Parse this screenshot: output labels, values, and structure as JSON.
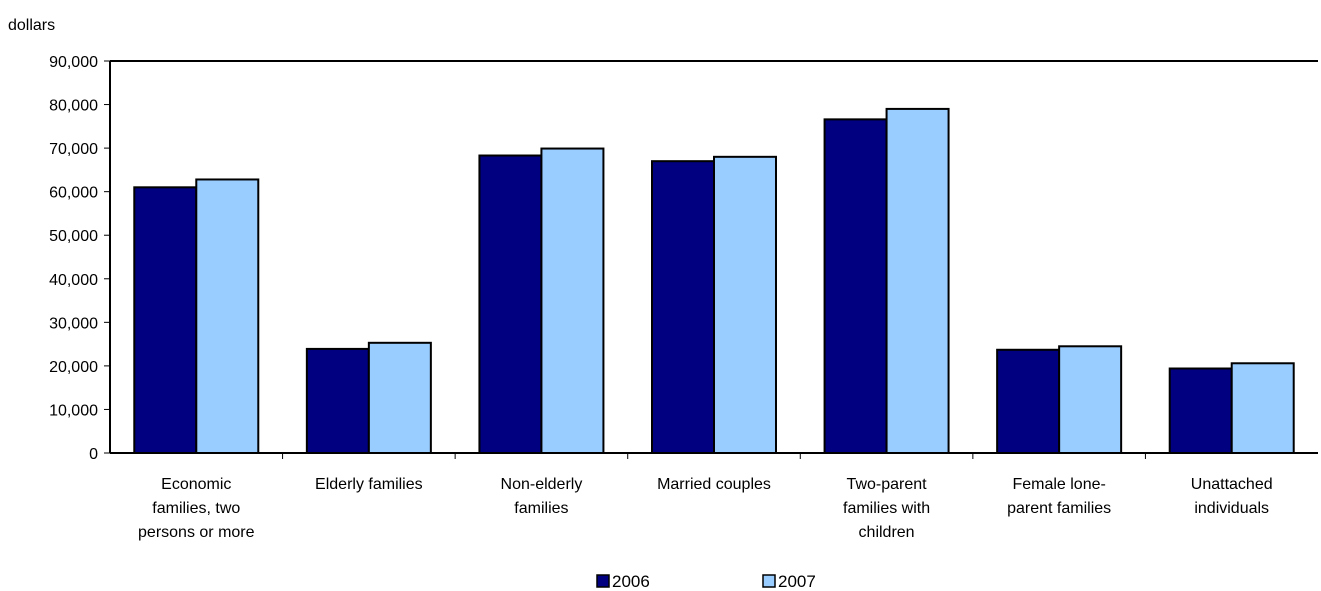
{
  "chart_data": {
    "type": "bar",
    "ylabel": "dollars",
    "ylim": [
      0,
      90000
    ],
    "yticks": [
      0,
      10000,
      20000,
      30000,
      40000,
      50000,
      60000,
      70000,
      80000,
      90000
    ],
    "ytick_labels": [
      "0",
      "10,000",
      "20,000",
      "30,000",
      "40,000",
      "50,000",
      "60,000",
      "70,000",
      "80,000",
      "90,000"
    ],
    "grid": false,
    "legend_position": "bottom",
    "categories": [
      [
        "Economic",
        "families, two",
        "persons or more"
      ],
      [
        "Elderly families"
      ],
      [
        "Non-elderly",
        "families"
      ],
      [
        "Married couples"
      ],
      [
        "Two-parent",
        "families with",
        "children"
      ],
      [
        "Female lone-",
        "parent families"
      ],
      [
        "Unattached",
        "individuals"
      ]
    ],
    "series": [
      {
        "name": "2006",
        "color": "#000080",
        "values": [
          61000,
          23900,
          68300,
          67000,
          76600,
          23700,
          19400
        ]
      },
      {
        "name": "2007",
        "color": "#99CCFF",
        "values": [
          62800,
          25300,
          69900,
          68000,
          79000,
          24500,
          20600
        ]
      }
    ]
  }
}
